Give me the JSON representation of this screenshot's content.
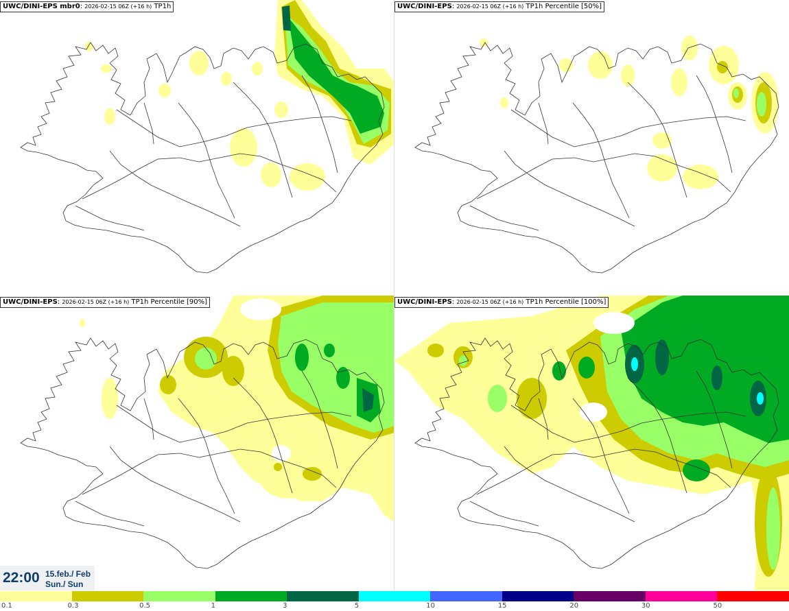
{
  "panels": [
    {
      "model": "UWC/DINI-EPS mbr0",
      "run": "2026-02-15 06Z (+16 h)",
      "param": "TP1h"
    },
    {
      "model": "UWC/DINI-EPS",
      "run": "2026-02-15 06Z (+16 h)",
      "param": "TP1h Percentile [50%]"
    },
    {
      "model": "UWC/DINI-EPS",
      "run": "2026-02-15 06Z (+16 h)",
      "param": "TP1h Percentile [90%]"
    },
    {
      "model": "UWC/DINI-EPS",
      "run": "2026-02-15 06Z (+16 h)",
      "param": "TP1h Percentile [100%]"
    }
  ],
  "time": {
    "clock": "22:00",
    "date_line": "15.feb./ Feb",
    "day_line": "Sun./ Sun"
  },
  "legend": {
    "labels": [
      "0.1",
      "0.3",
      "0.5",
      "1",
      "3",
      "5",
      "10",
      "15",
      "20",
      "30",
      "50"
    ],
    "colors": [
      "#ffff99",
      "#cccc00",
      "#99ff66",
      "#00aa22",
      "#006644",
      "#00ffff",
      "#4466ff",
      "#000088",
      "#660066",
      "#ff0099",
      "#ff0000"
    ]
  }
}
